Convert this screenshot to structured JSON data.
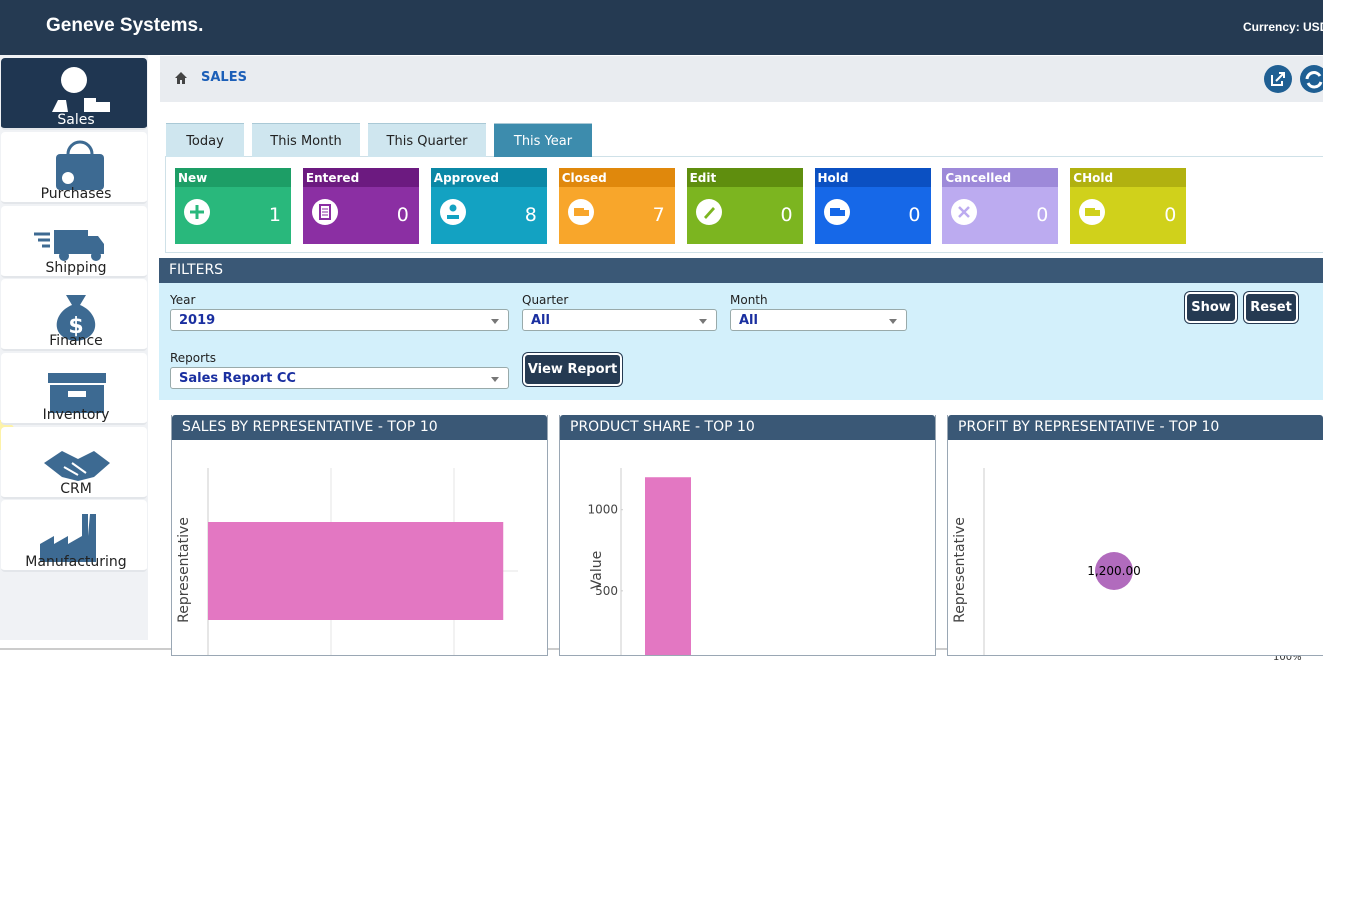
{
  "header": {
    "brand": "Geneve Systems.",
    "currency": "Currency: USD"
  },
  "nav": [
    {
      "label": "Sales",
      "active": true
    },
    {
      "label": "Purchases"
    },
    {
      "label": "Shipping"
    },
    {
      "label": "Finance"
    },
    {
      "label": "Inventory"
    },
    {
      "label": "CRM"
    },
    {
      "label": "Manufacturing"
    }
  ],
  "breadcrumb": "SALES",
  "tabs": [
    {
      "label": "Today"
    },
    {
      "label": "This Month"
    },
    {
      "label": "This Quarter"
    },
    {
      "label": "This Year",
      "active": true
    }
  ],
  "status_cards": [
    {
      "name": "New",
      "count": 1,
      "color": "#29b87c",
      "header_color": "#1d9e66"
    },
    {
      "name": "Entered",
      "count": 0,
      "color": "#8b2fa3",
      "header_color": "#6c1a80"
    },
    {
      "name": "Approved",
      "count": 8,
      "color": "#13a2c2",
      "header_color": "#0b88a6"
    },
    {
      "name": "Closed",
      "count": 7,
      "color": "#f8a62b",
      "header_color": "#e0880c"
    },
    {
      "name": "Edit",
      "count": 0,
      "color": "#7cb520",
      "header_color": "#5f8e0e"
    },
    {
      "name": "Hold",
      "count": 0,
      "color": "#1668e8",
      "header_color": "#0b50c2"
    },
    {
      "name": "Cancelled",
      "count": 0,
      "color": "#bcabf0",
      "header_color": "#9d89d9"
    },
    {
      "name": "CHold",
      "count": 0,
      "color": "#d0d11b",
      "header_color": "#b1b110"
    }
  ],
  "filters": {
    "title": "FILTERS",
    "fields": [
      {
        "label": "Year",
        "value": "2019"
      },
      {
        "label": "Quarter",
        "value": "All"
      },
      {
        "label": "Month",
        "value": "All"
      },
      {
        "label": "Reports",
        "value": "Sales Report CC"
      }
    ],
    "buttons": {
      "show": "Show",
      "reset": "Reset",
      "view_report": "View Report"
    }
  },
  "panels": [
    {
      "title": "SALES BY REPRESENTATIVE - TOP 10",
      "chart": {
        "type": "hbar",
        "y_label": "Representative",
        "values": [
          1200
        ],
        "xlim": [
          0,
          1260
        ],
        "color": "#e377c2"
      }
    },
    {
      "title": "PRODUCT SHARE - TOP 10",
      "chart": {
        "type": "bar",
        "y_label": "Value",
        "values": [
          1200
        ],
        "ylim": [
          0,
          1300
        ],
        "yticks": [
          500,
          1000
        ],
        "color": "#e377c2"
      }
    },
    {
      "title": "PROFIT BY REPRESENTATIVE - TOP 10",
      "chart": {
        "type": "bubble",
        "y_label": "Representative",
        "values": [
          1200
        ],
        "value_labels": [
          "1,200.00"
        ],
        "color": "#a95bb6"
      }
    }
  ],
  "status_bar": {
    "zoom": "100%"
  }
}
